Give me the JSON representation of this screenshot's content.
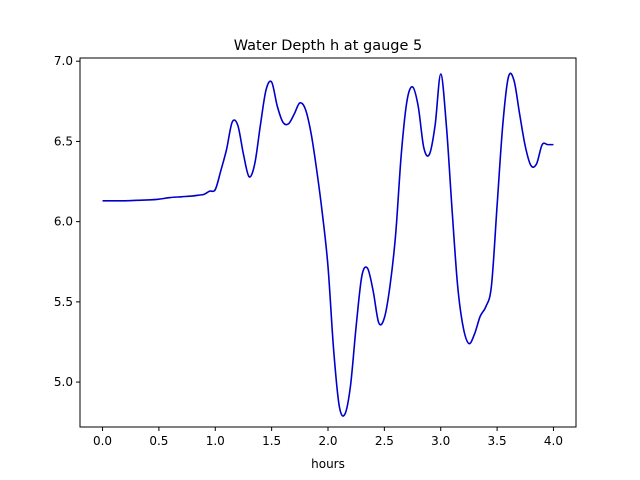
{
  "chart_data": {
    "type": "line",
    "title": "Water Depth h at gauge 5",
    "xlabel": "hours",
    "ylabel": "",
    "xlim": [
      -0.2,
      4.2
    ],
    "ylim": [
      4.72,
      7.02
    ],
    "xticks": [
      0.0,
      0.5,
      1.0,
      1.5,
      2.0,
      2.5,
      3.0,
      3.5,
      4.0
    ],
    "xtick_labels": [
      "0.0",
      "0.5",
      "1.0",
      "1.5",
      "2.0",
      "2.5",
      "3.0",
      "3.5",
      "4.0"
    ],
    "yticks": [
      5.0,
      5.5,
      6.0,
      6.5,
      7.0
    ],
    "ytick_labels": [
      "5.0",
      "5.5",
      "6.0",
      "6.5",
      "7.0"
    ],
    "grid": false,
    "series": [
      {
        "color": "#0000cc",
        "x": [
          0.0,
          0.1,
          0.2,
          0.3,
          0.4,
          0.5,
          0.6,
          0.7,
          0.8,
          0.85,
          0.9,
          0.95,
          1.0,
          1.05,
          1.1,
          1.15,
          1.2,
          1.25,
          1.3,
          1.35,
          1.4,
          1.45,
          1.5,
          1.55,
          1.6,
          1.65,
          1.7,
          1.75,
          1.8,
          1.85,
          1.9,
          1.95,
          2.0,
          2.05,
          2.1,
          2.15,
          2.2,
          2.25,
          2.3,
          2.35,
          2.4,
          2.45,
          2.5,
          2.55,
          2.6,
          2.65,
          2.7,
          2.75,
          2.8,
          2.85,
          2.9,
          2.95,
          3.0,
          3.05,
          3.1,
          3.15,
          3.2,
          3.25,
          3.3,
          3.35,
          3.4,
          3.45,
          3.5,
          3.55,
          3.6,
          3.65,
          3.7,
          3.75,
          3.8,
          3.85,
          3.9,
          3.95,
          4.0
        ],
        "y": [
          6.13,
          6.13,
          6.13,
          6.133,
          6.135,
          6.14,
          6.15,
          6.155,
          6.16,
          6.165,
          6.17,
          6.19,
          6.2,
          6.32,
          6.45,
          6.62,
          6.6,
          6.42,
          6.28,
          6.36,
          6.6,
          6.82,
          6.87,
          6.72,
          6.62,
          6.61,
          6.67,
          6.74,
          6.7,
          6.55,
          6.32,
          6.05,
          5.72,
          5.2,
          4.85,
          4.8,
          4.98,
          5.35,
          5.66,
          5.71,
          5.57,
          5.37,
          5.4,
          5.6,
          5.92,
          6.42,
          6.75,
          6.84,
          6.72,
          6.46,
          6.42,
          6.6,
          6.92,
          6.6,
          6.08,
          5.6,
          5.34,
          5.24,
          5.3,
          5.41,
          5.47,
          5.6,
          6.1,
          6.6,
          6.9,
          6.88,
          6.67,
          6.47,
          6.35,
          6.36,
          6.48,
          6.48,
          6.48
        ]
      }
    ]
  }
}
